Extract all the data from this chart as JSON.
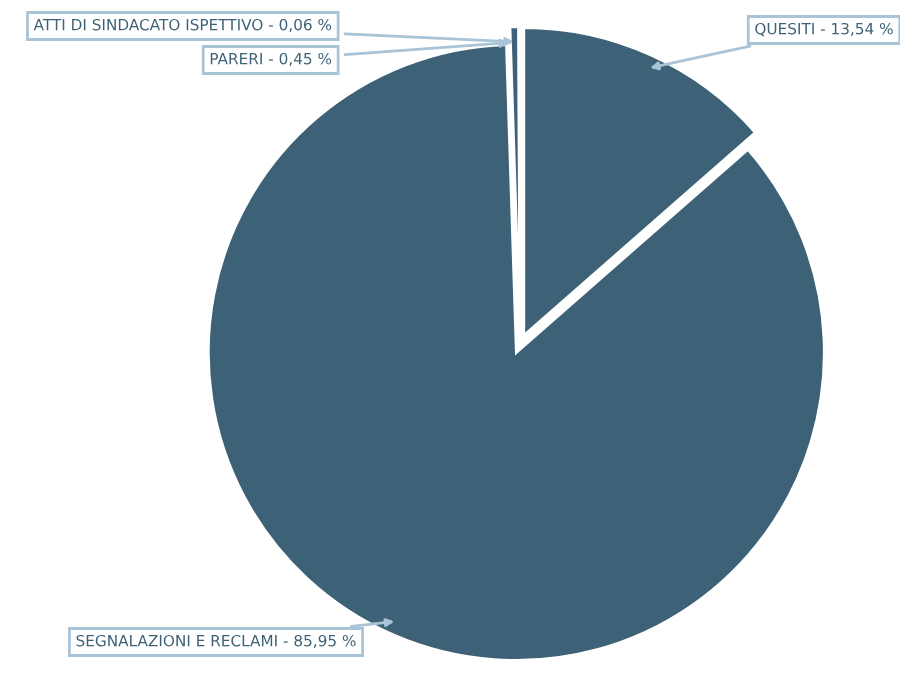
{
  "chart_data": {
    "type": "pie",
    "categories": [
      "QUESITI",
      "SEGNALAZIONI E RECLAMI",
      "PARERI",
      "ATTI DI SINDACATO ISPETTIVO"
    ],
    "values": [
      13.54,
      85.95,
      0.45,
      0.06
    ],
    "value_labels": [
      "13,54 %",
      "85,95 %",
      "0,45 %",
      "0,06 %"
    ],
    "colors": [
      "#3d6176",
      "#3d6176",
      "#3d6176",
      "#3d6176"
    ],
    "legend": false
  }
}
